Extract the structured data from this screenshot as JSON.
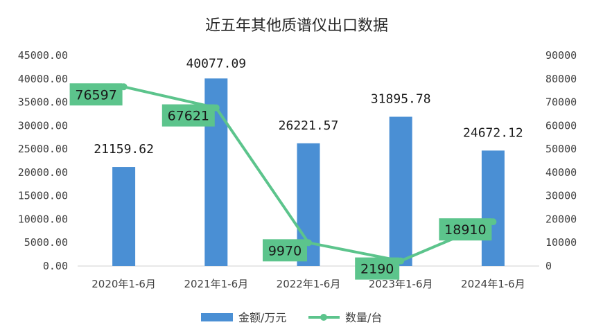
{
  "chart_data": {
    "type": "bar",
    "title": "近五年其他质谱仪出口数据",
    "categories": [
      "2020年1-6月",
      "2021年1-6月",
      "2022年1-6月",
      "2023年1-6月",
      "2024年1-6月"
    ],
    "y_left": {
      "ticks": [
        "0.00",
        "5000.00",
        "10000.00",
        "15000.00",
        "20000.00",
        "25000.00",
        "30000.00",
        "35000.00",
        "40000.00",
        "45000.00"
      ],
      "ylim": [
        0,
        45000
      ]
    },
    "y_right": {
      "ticks": [
        "0",
        "10000",
        "20000",
        "30000",
        "40000",
        "50000",
        "60000",
        "70000",
        "80000",
        "90000"
      ],
      "ylim": [
        0,
        90000
      ]
    },
    "series": [
      {
        "name": "金额/万元",
        "type": "bar",
        "axis": "left",
        "color": "#4a8fd4",
        "values": [
          21159.62,
          40077.09,
          26221.57,
          31895.78,
          24672.12
        ],
        "labels": [
          "21159.62",
          "40077.09",
          "26221.57",
          "31895.78",
          "24672.12"
        ]
      },
      {
        "name": "数量/台",
        "type": "line",
        "axis": "right",
        "color": "#5cc48c",
        "values": [
          76597,
          67621,
          9970,
          2190,
          18910
        ],
        "labels": [
          "76597",
          "67621",
          "9970",
          "2190",
          "18910"
        ]
      }
    ],
    "grid": false,
    "legend": "bottom"
  }
}
